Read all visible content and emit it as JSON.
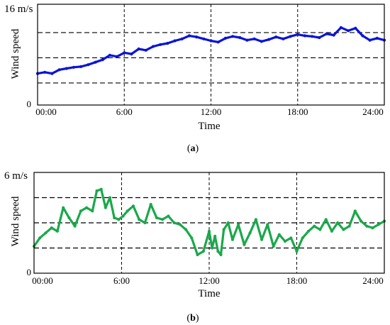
{
  "chart_data": [
    {
      "type": "line",
      "panel_label": "(a)",
      "panel_letter": "a",
      "ylabel": "Wind speed",
      "xlabel": "Time",
      "y_max_label": "16 m/s",
      "y_min_label": "0",
      "ylim": [
        0,
        16
      ],
      "xlim": [
        0,
        24
      ],
      "x_tick_values": [
        0,
        6,
        12,
        18,
        24
      ],
      "x_tick_labels": [
        "00:00",
        "6:00",
        "12:00",
        "18:00",
        "24:00"
      ],
      "reference_lines": [
        3.5,
        7.5,
        11.5
      ],
      "grid": "vertical dashed at 6-hour ticks, horizontal dashed reference lines",
      "series": [
        {
          "color": "#0a14d6",
          "x": [
            0.0,
            0.5,
            1.0,
            1.5,
            2.0,
            2.5,
            3.0,
            3.5,
            4.0,
            4.5,
            5.0,
            5.5,
            6.0,
            6.5,
            7.0,
            7.5,
            8.0,
            8.5,
            9.0,
            9.5,
            10.0,
            10.5,
            11.0,
            11.5,
            12.0,
            12.5,
            13.0,
            13.5,
            14.0,
            14.5,
            15.0,
            15.5,
            16.0,
            16.5,
            17.0,
            17.5,
            18.0,
            18.5,
            19.0,
            19.5,
            20.0,
            20.5,
            21.0,
            21.5,
            22.0,
            22.5,
            23.0,
            23.5,
            24.0
          ],
          "y": [
            5.0,
            5.2,
            5.0,
            5.6,
            5.8,
            6.0,
            6.1,
            6.4,
            6.8,
            7.2,
            7.9,
            7.7,
            8.3,
            8.1,
            8.9,
            8.7,
            9.3,
            9.6,
            9.8,
            10.2,
            10.5,
            11.0,
            10.8,
            10.5,
            10.2,
            10.0,
            10.6,
            10.9,
            10.7,
            10.3,
            10.5,
            10.1,
            10.4,
            10.8,
            10.5,
            10.9,
            11.2,
            11.0,
            10.9,
            10.7,
            11.3,
            11.1,
            12.3,
            11.8,
            12.2,
            11.0,
            10.3,
            10.6,
            10.3
          ]
        }
      ]
    },
    {
      "type": "line",
      "panel_label": "(b)",
      "panel_letter": "b",
      "ylabel": "Wind speed",
      "xlabel": "Time",
      "y_max_label": "6 m/s",
      "y_min_label": "0",
      "ylim": [
        0,
        6
      ],
      "xlim": [
        0,
        24
      ],
      "x_tick_values": [
        0,
        6,
        12,
        18,
        24
      ],
      "x_tick_labels": [
        "00:00",
        "6:00",
        "12:00",
        "18:00",
        "24:00"
      ],
      "reference_lines": [
        1.5,
        3.0,
        4.5
      ],
      "grid": "vertical dashed at 6-hour ticks, horizontal dashed reference lines",
      "series": [
        {
          "color": "#1aa84a",
          "x": [
            0.0,
            0.4,
            0.8,
            1.2,
            1.6,
            2.0,
            2.4,
            2.8,
            3.2,
            3.6,
            4.0,
            4.3,
            4.6,
            4.9,
            5.2,
            5.5,
            5.8,
            6.1,
            6.4,
            6.8,
            7.2,
            7.6,
            8.0,
            8.4,
            8.8,
            9.2,
            9.6,
            10.0,
            10.4,
            10.8,
            11.2,
            11.6,
            12.0,
            12.2,
            12.4,
            12.6,
            12.8,
            13.0,
            13.3,
            13.6,
            14.0,
            14.4,
            14.8,
            15.2,
            15.6,
            16.0,
            16.4,
            16.8,
            17.2,
            17.6,
            18.0,
            18.4,
            18.8,
            19.2,
            19.6,
            20.0,
            20.4,
            20.8,
            21.2,
            21.6,
            22.0,
            22.4,
            22.8,
            23.2,
            23.6,
            24.0
          ],
          "y": [
            1.6,
            2.1,
            2.4,
            2.7,
            2.5,
            3.9,
            3.3,
            2.8,
            3.7,
            3.9,
            3.7,
            4.9,
            5.0,
            3.9,
            4.5,
            3.3,
            3.2,
            3.4,
            3.7,
            4.0,
            3.2,
            3.0,
            4.1,
            3.3,
            3.2,
            3.4,
            3.0,
            2.9,
            2.6,
            2.1,
            1.1,
            1.3,
            2.5,
            1.5,
            2.2,
            1.3,
            1.1,
            2.6,
            3.0,
            2.0,
            2.9,
            1.7,
            2.4,
            3.2,
            2.0,
            2.9,
            1.6,
            2.3,
            1.9,
            2.1,
            1.3,
            2.1,
            2.5,
            2.8,
            2.6,
            3.2,
            2.5,
            3.0,
            2.6,
            2.8,
            3.7,
            3.1,
            2.8,
            2.7,
            2.9,
            3.1
          ]
        }
      ]
    }
  ]
}
